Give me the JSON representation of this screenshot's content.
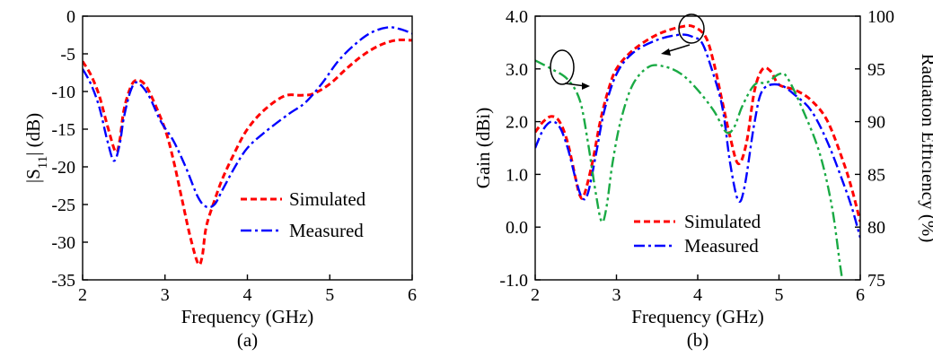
{
  "chart_data": [
    {
      "panel": "(a)",
      "type": "line",
      "xlabel": "Frequency (GHz)",
      "ylabel": "|S11| (dB)",
      "xlim": [
        2,
        6
      ],
      "ylim": [
        -35,
        0
      ],
      "xticks": [
        "2",
        "3",
        "4",
        "5",
        "6"
      ],
      "yticks": [
        "0",
        "-5",
        "-10",
        "-15",
        "-20",
        "-25",
        "-30",
        "-35"
      ],
      "legend_position": "lower-right",
      "series": [
        {
          "name": "Simulated",
          "color": "#ff0000",
          "style": "dashed",
          "points": [
            [
              2.0,
              -6.0
            ],
            [
              2.1,
              -7.8
            ],
            [
              2.2,
              -10.5
            ],
            [
              2.3,
              -14.5
            ],
            [
              2.4,
              -18.0
            ],
            [
              2.45,
              -16.5
            ],
            [
              2.5,
              -12.5
            ],
            [
              2.58,
              -9.5
            ],
            [
              2.65,
              -8.5
            ],
            [
              2.75,
              -9.0
            ],
            [
              2.85,
              -11.0
            ],
            [
              3.0,
              -15.0
            ],
            [
              3.1,
              -19.0
            ],
            [
              3.2,
              -24.0
            ],
            [
              3.3,
              -29.0
            ],
            [
              3.4,
              -32.8
            ],
            [
              3.45,
              -32.0
            ],
            [
              3.5,
              -28.0
            ],
            [
              3.6,
              -24.5
            ],
            [
              3.7,
              -21.5
            ],
            [
              3.85,
              -18.0
            ],
            [
              4.0,
              -15.0
            ],
            [
              4.2,
              -12.5
            ],
            [
              4.45,
              -10.6
            ],
            [
              4.65,
              -10.5
            ],
            [
              4.8,
              -10.3
            ],
            [
              5.0,
              -9.0
            ],
            [
              5.2,
              -7.0
            ],
            [
              5.4,
              -5.2
            ],
            [
              5.6,
              -3.9
            ],
            [
              5.8,
              -3.2
            ],
            [
              6.0,
              -3.2
            ]
          ]
        },
        {
          "name": "Measured",
          "color": "#0000ff",
          "style": "dashdot",
          "points": [
            [
              2.0,
              -7.0
            ],
            [
              2.1,
              -9.0
            ],
            [
              2.2,
              -12.0
            ],
            [
              2.3,
              -16.5
            ],
            [
              2.38,
              -19.2
            ],
            [
              2.45,
              -17.0
            ],
            [
              2.5,
              -13.5
            ],
            [
              2.58,
              -10.0
            ],
            [
              2.66,
              -8.8
            ],
            [
              2.8,
              -10.5
            ],
            [
              2.95,
              -14.0
            ],
            [
              3.1,
              -16.5
            ],
            [
              3.25,
              -20.0
            ],
            [
              3.4,
              -24.0
            ],
            [
              3.5,
              -25.3
            ],
            [
              3.6,
              -25.0
            ],
            [
              3.7,
              -23.0
            ],
            [
              3.85,
              -20.0
            ],
            [
              4.0,
              -17.5
            ],
            [
              4.2,
              -15.5
            ],
            [
              4.5,
              -13.0
            ],
            [
              4.7,
              -11.5
            ],
            [
              4.9,
              -9.0
            ],
            [
              5.1,
              -6.0
            ],
            [
              5.3,
              -3.8
            ],
            [
              5.5,
              -2.2
            ],
            [
              5.7,
              -1.5
            ],
            [
              5.85,
              -1.7
            ],
            [
              6.0,
              -2.3
            ]
          ]
        }
      ]
    },
    {
      "panel": "(b)",
      "type": "line",
      "xlabel": "Frequency (GHz)",
      "ylabel": "Gain (dBi)",
      "y2label": "Radiation Efficiency (%)",
      "xlim": [
        2,
        6
      ],
      "ylim": [
        -1.0,
        4.0
      ],
      "y2lim": [
        75,
        100
      ],
      "xticks": [
        "2",
        "3",
        "4",
        "5",
        "6"
      ],
      "yticks": [
        "4.0",
        "3.0",
        "2.0",
        "1.0",
        "0.0",
        "-1.0"
      ],
      "y2ticks": [
        "100",
        "95",
        "90",
        "85",
        "80",
        "75"
      ],
      "legend_position": "lower-center",
      "series": [
        {
          "name": "Simulated",
          "axis": "left",
          "color": "#ff0000",
          "style": "dashed",
          "points": [
            [
              2.0,
              1.8
            ],
            [
              2.1,
              2.0
            ],
            [
              2.2,
              2.1
            ],
            [
              2.3,
              2.0
            ],
            [
              2.4,
              1.6
            ],
            [
              2.5,
              0.9
            ],
            [
              2.55,
              0.6
            ],
            [
              2.6,
              0.6
            ],
            [
              2.7,
              1.2
            ],
            [
              2.8,
              2.0
            ],
            [
              2.9,
              2.6
            ],
            [
              3.0,
              3.0
            ],
            [
              3.2,
              3.35
            ],
            [
              3.5,
              3.65
            ],
            [
              3.8,
              3.8
            ],
            [
              3.95,
              3.8
            ],
            [
              4.1,
              3.6
            ],
            [
              4.2,
              3.1
            ],
            [
              4.3,
              2.4
            ],
            [
              4.4,
              1.7
            ],
            [
              4.5,
              1.2
            ],
            [
              4.6,
              1.6
            ],
            [
              4.7,
              2.6
            ],
            [
              4.8,
              3.0
            ],
            [
              4.9,
              2.95
            ],
            [
              5.0,
              2.7
            ],
            [
              5.2,
              2.6
            ],
            [
              5.4,
              2.4
            ],
            [
              5.6,
              2.0
            ],
            [
              5.8,
              1.2
            ],
            [
              5.9,
              0.7
            ],
            [
              6.0,
              0.1
            ]
          ]
        },
        {
          "name": "Measured",
          "axis": "left",
          "color": "#0000ff",
          "style": "dashdot",
          "points": [
            [
              2.0,
              1.5
            ],
            [
              2.1,
              1.85
            ],
            [
              2.2,
              2.0
            ],
            [
              2.3,
              1.9
            ],
            [
              2.4,
              1.5
            ],
            [
              2.5,
              0.9
            ],
            [
              2.58,
              0.55
            ],
            [
              2.65,
              0.65
            ],
            [
              2.75,
              1.4
            ],
            [
              2.85,
              2.2
            ],
            [
              3.0,
              2.9
            ],
            [
              3.2,
              3.3
            ],
            [
              3.5,
              3.55
            ],
            [
              3.8,
              3.65
            ],
            [
              3.95,
              3.6
            ],
            [
              4.05,
              3.5
            ],
            [
              4.15,
              3.1
            ],
            [
              4.3,
              2.3
            ],
            [
              4.4,
              1.2
            ],
            [
              4.5,
              0.5
            ],
            [
              4.58,
              0.8
            ],
            [
              4.7,
              2.0
            ],
            [
              4.8,
              2.6
            ],
            [
              5.0,
              2.7
            ],
            [
              5.2,
              2.5
            ],
            [
              5.4,
              2.2
            ],
            [
              5.6,
              1.6
            ],
            [
              5.8,
              0.8
            ],
            [
              5.9,
              0.35
            ],
            [
              6.0,
              -0.2
            ]
          ]
        },
        {
          "name": "Radiation Efficiency",
          "axis": "right",
          "color": "#1aaa44",
          "style": "dashdotdot",
          "points": [
            [
              2.0,
              95.8
            ],
            [
              2.2,
              95.0
            ],
            [
              2.4,
              94.0
            ],
            [
              2.55,
              92.0
            ],
            [
              2.65,
              88.0
            ],
            [
              2.75,
              83.0
            ],
            [
              2.82,
              80.5
            ],
            [
              2.88,
              82.0
            ],
            [
              2.95,
              86.0
            ],
            [
              3.05,
              90.0
            ],
            [
              3.2,
              93.5
            ],
            [
              3.4,
              95.2
            ],
            [
              3.6,
              95.2
            ],
            [
              3.8,
              94.5
            ],
            [
              4.0,
              93.0
            ],
            [
              4.2,
              91.0
            ],
            [
              4.35,
              89.0
            ],
            [
              4.45,
              89.5
            ],
            [
              4.55,
              91.5
            ],
            [
              4.7,
              93.5
            ],
            [
              4.85,
              93.7
            ],
            [
              5.0,
              94.5
            ],
            [
              5.1,
              94.2
            ],
            [
              5.3,
              91.0
            ],
            [
              5.5,
              87.0
            ],
            [
              5.65,
              82.0
            ],
            [
              5.75,
              76.5
            ],
            [
              5.8,
              74.0
            ]
          ]
        }
      ]
    }
  ],
  "captions": {
    "a": "(a)",
    "b": "(b)"
  }
}
